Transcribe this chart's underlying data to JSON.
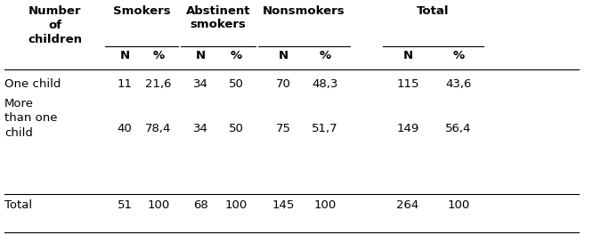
{
  "col_groups": [
    "Smokers",
    "Abstinent\nsmokers",
    "Nonsmokers",
    "Total"
  ],
  "row_header": "Number\nof\nchildren",
  "sub_headers": [
    "N",
    "%",
    "N",
    "%",
    "N",
    "%",
    "N",
    "%"
  ],
  "rows": [
    {
      "label_lines": [
        "One child"
      ],
      "values": [
        "11",
        "21,6",
        "34",
        "50",
        "70",
        "48,3",
        "115",
        "43,6"
      ]
    },
    {
      "label_lines": [
        "More",
        "than one",
        "child"
      ],
      "values": [
        "40",
        "78,4",
        "34",
        "50",
        "75",
        "51,7",
        "149",
        "56,4"
      ]
    },
    {
      "label_lines": [
        "Total"
      ],
      "values": [
        "51",
        "100",
        "68",
        "100",
        "145",
        "100",
        "264",
        "100"
      ]
    }
  ],
  "bg_color": "#ffffff",
  "text_color": "#000000",
  "figsize": [
    6.66,
    2.64
  ],
  "dpi": 100
}
